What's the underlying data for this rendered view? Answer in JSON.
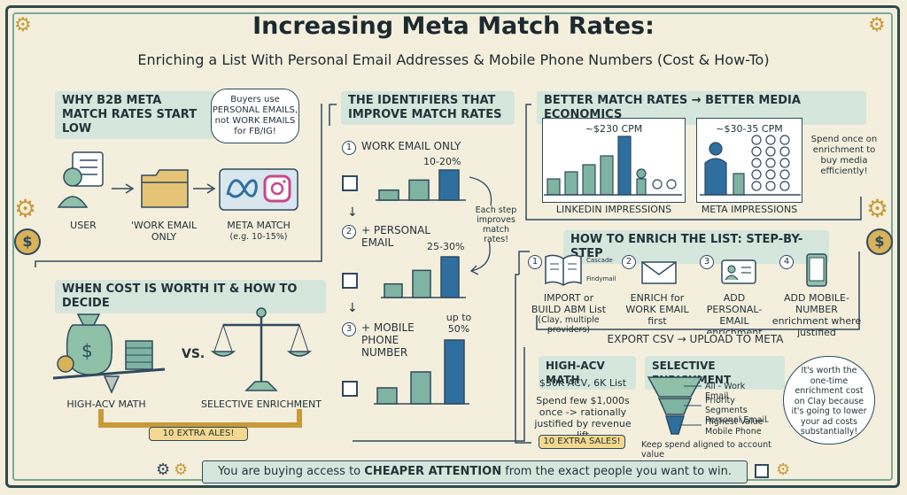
{
  "title": "Increasing Meta Match Rates:",
  "subtitle": "Enriching a List With Personal Email Addresses & Mobile Phone Numbers (Cost & How-To)",
  "why": {
    "header": "WHY B2B META MATCH RATES START LOW",
    "bubble": "Buyers use PERSONAL EMAILS, not WORK EMAILS for FB/IG!",
    "user": "USER",
    "work_email": "'WORK EMAIL ONLY",
    "meta_match": "META MATCH",
    "meta_match_sub": "(e.g. 10-15%)"
  },
  "identifiers": {
    "header": "THE IDENTIFIERS THAT IMPROVE MATCH RATES",
    "steps": [
      {
        "num": "1",
        "label": "WORK EMAIL ONLY",
        "rate": "10-20%"
      },
      {
        "num": "2",
        "label": "+ PERSONAL EMAIL",
        "rate": "25-30%"
      },
      {
        "num": "3",
        "label": "+ MOBILE PHONE NUMBER",
        "rate": "up to 50%"
      }
    ],
    "note": "Each step improves match rates!"
  },
  "economics": {
    "header": "BETTER MATCH RATES → BETTER MEDIA ECONOMICS",
    "linkedin_cpm": "~$230 CPM",
    "linkedin_label": "LINKEDIN IMPRESSIONS",
    "meta_cpm": "~$30-35 CPM",
    "meta_label": "META IMPRESSIONS",
    "note": "Spend once on enrichment to buy media efficiently!"
  },
  "enrich": {
    "header": "HOW TO ENRICH THE LIST: STEP-BY-STEP",
    "steps": [
      {
        "num": "1",
        "label": "IMPORT or BUILD ABM List",
        "sub": "(Clay, multiple providers)"
      },
      {
        "num": "2",
        "label": "ENRICH for WORK EMAIL first"
      },
      {
        "num": "3",
        "label": "ADD PERSONAL-EMAIL enrichment"
      },
      {
        "num": "4",
        "label": "ADD MOBILE-NUMBER enrichment where justified"
      }
    ],
    "providers": [
      "Cascade",
      "Findymail"
    ],
    "export": "EXPORT CSV → UPLOAD TO META"
  },
  "cost": {
    "header": "WHEN COST IS WORTH IT & HOW TO DECIDE",
    "vs": "VS.",
    "left_label": "HIGH-ACV MATH",
    "right_label": "SELECTIVE ENRICHMENT",
    "badge": "10 EXTRA ALES!"
  },
  "acv": {
    "header": "HIGH-ACV MATH",
    "line1": "$30K ACV, 6K List",
    "line2": "Spend few $1,000s once -> rationally justified by revenue lift",
    "badge": "10 EXTRA SALES!"
  },
  "selective": {
    "header": "SELECTIVE ENRICHMENT",
    "tiers": [
      "All - Work Email",
      "Priority Segments Personal Email",
      "Highest Value - Mobile Phone"
    ],
    "note": "Keep spend aligned to account value"
  },
  "worth_bubble": "It's worth the one-time enrichment cost on Clay because it's going to lower your ad costs substantially!",
  "footer": {
    "prefix": "You are buying access to ",
    "emph": "CHEAPER ATTENTION",
    "suffix": " from the exact people you want to win."
  },
  "colors": {
    "teal": "#7fb3a2",
    "blue": "#2f6f9f",
    "navy": "#2e4a5e",
    "gold": "#d9b25a",
    "bg": "#f4efdd"
  },
  "chart_data": [
    {
      "type": "bar",
      "title": "WORK EMAIL ONLY",
      "values": [
        1,
        2,
        3
      ],
      "annotation": "10-20%"
    },
    {
      "type": "bar",
      "title": "+ PERSONAL EMAIL",
      "values": [
        1,
        2,
        3
      ],
      "annotation": "25-30%"
    },
    {
      "type": "bar",
      "title": "+ MOBILE PHONE NUMBER",
      "values": [
        1,
        2,
        4
      ],
      "annotation": "up to 50%"
    }
  ]
}
